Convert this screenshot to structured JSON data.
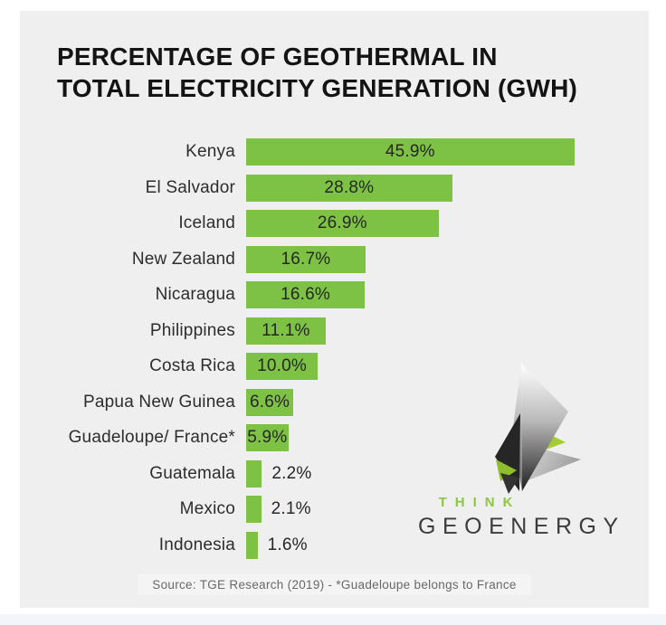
{
  "title": {
    "line1": "PERCENTAGE OF GEOTHERMAL IN",
    "line2": "TOTAL ELECTRICITY GENERATION (GWH)"
  },
  "chart_data": {
    "type": "bar",
    "orientation": "horizontal",
    "title": "PERCENTAGE OF GEOTHERMAL IN TOTAL ELECTRICITY GENERATION (GWH)",
    "categories": [
      "Kenya",
      "El Salvador",
      "Iceland",
      "New Zealand",
      "Nicaragua",
      "Philippines",
      "Costa Rica",
      "Papua New Guinea",
      "Guadeloupe/ France*",
      "Guatemala",
      "Mexico",
      "Indonesia"
    ],
    "values": [
      45.9,
      28.8,
      26.9,
      16.7,
      16.6,
      11.1,
      10.0,
      6.6,
      5.9,
      2.2,
      2.1,
      1.6
    ],
    "value_labels": [
      "45.9%",
      "28.8%",
      "26.9%",
      "16.7%",
      "16.6%",
      "11.1%",
      "10.0%",
      "6.6%",
      "5.9%",
      "2.2%",
      "2.1%",
      "1.6%"
    ],
    "xlabel": "",
    "ylabel": "",
    "xlim": [
      0,
      57.6
    ],
    "grid": false,
    "legend": null,
    "bar_color": "#7dc244",
    "value_label_placement": "inside bars, outside for bars under 5%"
  },
  "logo": {
    "line1": "THINK",
    "line2": "GEOENERGY",
    "accent_color": "#8dc63f",
    "text_color": "#3c3c3c"
  },
  "source_note": "Source: TGE Research (2019) - *Guadeloupe belongs to France",
  "colors": {
    "panel_background": "#efeff0",
    "page_background": "#ffffff",
    "bar_green": "#7dc244",
    "title_text": "#141414",
    "label_text": "#2d2d2d",
    "source_text": "#686868",
    "logo_green_accent": "#9cc739"
  }
}
